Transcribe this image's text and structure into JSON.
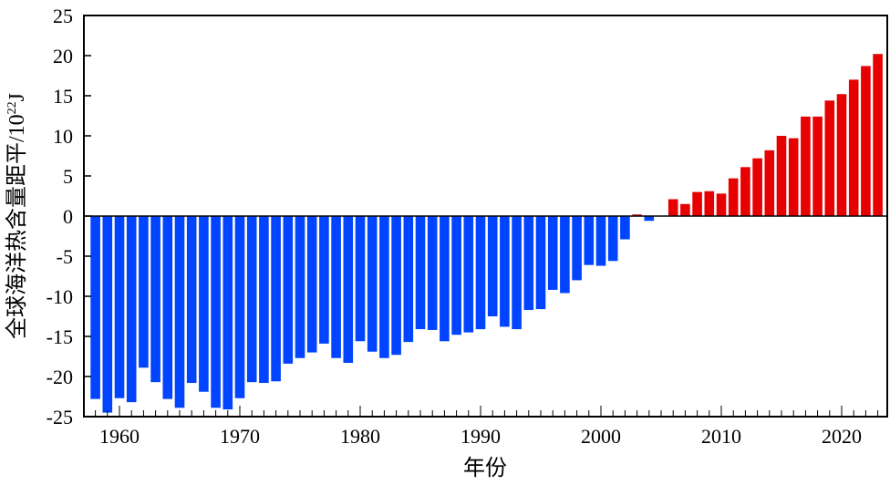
{
  "chart_data": {
    "type": "bar",
    "title": "",
    "xlabel": "年份",
    "ylabel": "全球海洋热含量距平/10²²J",
    "ylabel_main": "全球海洋热含量距平/10",
    "ylabel_sup": "22",
    "ylabel_unit": "J",
    "ylim": [
      -25,
      25
    ],
    "yticks": [
      -25,
      -20,
      -15,
      -10,
      -5,
      0,
      5,
      10,
      15,
      20,
      25
    ],
    "xlim": [
      1957,
      2024
    ],
    "xticks": [
      1960,
      1970,
      1980,
      1990,
      2000,
      2010,
      2020
    ],
    "grid": false,
    "colors": {
      "negative": "#0044ff",
      "positive": "#e60000"
    },
    "x": [
      1958,
      1959,
      1960,
      1961,
      1962,
      1963,
      1964,
      1965,
      1966,
      1967,
      1968,
      1969,
      1970,
      1971,
      1972,
      1973,
      1974,
      1975,
      1976,
      1977,
      1978,
      1979,
      1980,
      1981,
      1982,
      1983,
      1984,
      1985,
      1986,
      1987,
      1988,
      1989,
      1990,
      1991,
      1992,
      1993,
      1994,
      1995,
      1996,
      1997,
      1998,
      1999,
      2000,
      2001,
      2002,
      2003,
      2004,
      2005,
      2006,
      2007,
      2008,
      2009,
      2010,
      2011,
      2012,
      2013,
      2014,
      2015,
      2016,
      2017,
      2018,
      2019,
      2020,
      2021,
      2022,
      2023
    ],
    "values": [
      -22.8,
      -24.5,
      -22.7,
      -23.2,
      -18.9,
      -20.7,
      -22.8,
      -23.9,
      -20.8,
      -21.9,
      -23.9,
      -24.1,
      -22.7,
      -20.7,
      -20.8,
      -20.6,
      -18.4,
      -17.7,
      -17.0,
      -15.9,
      -17.7,
      -18.3,
      -15.6,
      -16.9,
      -17.7,
      -17.3,
      -15.7,
      -14.1,
      -14.2,
      -15.6,
      -14.8,
      -14.5,
      -14.1,
      -12.5,
      -13.8,
      -14.1,
      -11.7,
      -11.6,
      -9.2,
      -9.6,
      -8.0,
      -6.1,
      -6.2,
      -5.6,
      -2.9,
      0.2,
      -0.6,
      0.0,
      2.1,
      1.5,
      3.0,
      3.1,
      2.8,
      4.7,
      6.1,
      7.2,
      8.2,
      10.0,
      9.7,
      12.4,
      12.4,
      14.4,
      15.2,
      17.0,
      18.7,
      20.2
    ]
  }
}
